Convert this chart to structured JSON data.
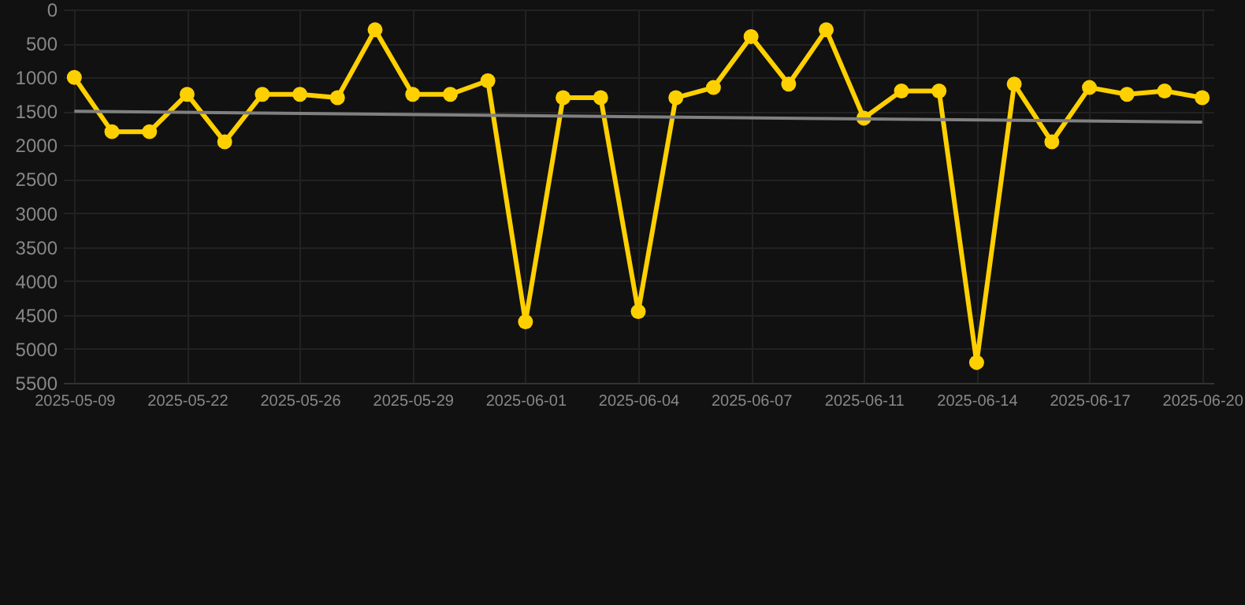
{
  "chart_data": {
    "type": "line",
    "categories": [
      "2025-05-09",
      null,
      null,
      "2025-05-22",
      null,
      null,
      "2025-05-26",
      null,
      null,
      "2025-05-29",
      null,
      null,
      "2025-06-01",
      null,
      null,
      "2025-06-04",
      null,
      null,
      "2025-06-07",
      null,
      null,
      "2025-06-11",
      null,
      null,
      "2025-06-14",
      null,
      null,
      "2025-06-17",
      null,
      null,
      "2025-06-20"
    ],
    "series": [
      {
        "color": "#ffd000",
        "marker": "circle",
        "values": [
          1000,
          1800,
          1800,
          1250,
          1950,
          1250,
          1250,
          1300,
          300,
          1250,
          1250,
          1050,
          4600,
          1300,
          1300,
          4450,
          1300,
          1150,
          400,
          1100,
          300,
          1600,
          1200,
          1200,
          5200,
          1100,
          1950,
          1150,
          1250,
          1200,
          1300
        ]
      },
      {
        "type": "line",
        "color": "#808080",
        "marker": "none",
        "values": [
          1500,
          null,
          null,
          null,
          null,
          null,
          null,
          null,
          null,
          null,
          null,
          null,
          null,
          null,
          null,
          null,
          null,
          null,
          null,
          null,
          null,
          null,
          null,
          null,
          null,
          null,
          null,
          null,
          null,
          null,
          1660
        ]
      }
    ],
    "ylim": [
      5500,
      0
    ],
    "yticks": [
      0,
      500,
      1000,
      1500,
      2000,
      2500,
      3000,
      3500,
      4000,
      4500,
      5000,
      5500
    ],
    "grid": true,
    "line_style": "solid"
  }
}
